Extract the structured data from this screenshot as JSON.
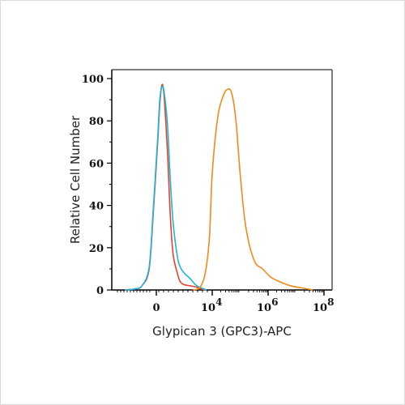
{
  "chart_data": {
    "type": "line",
    "title": "",
    "xlabel": "Glypican 3 (GPC3)-APC",
    "ylabel": "Relative Cell Number",
    "x_scale": "biexponential",
    "x_ticks": [
      {
        "label": "0",
        "base": "0",
        "exp": ""
      },
      {
        "label": "10^4",
        "base": "10",
        "exp": "4"
      },
      {
        "label": "10^6",
        "base": "10",
        "exp": "6"
      },
      {
        "label": "10^8",
        "base": "10",
        "exp": "8"
      }
    ],
    "ylim": [
      0,
      100
    ],
    "y_ticks": [
      "0",
      "20",
      "40",
      "60",
      "80",
      "100"
    ],
    "grid": false,
    "legend": "none",
    "series": [
      {
        "color": "#e8412a",
        "x": [
          -2.2,
          -1.5,
          -1.0,
          -0.5,
          -0.2,
          0.1,
          0.25,
          0.4,
          0.55,
          0.8,
          1.0,
          1.2,
          1.5,
          1.7,
          2.0,
          2.4,
          2.8,
          3.2,
          3.5
        ],
        "y": [
          0,
          0.5,
          2,
          10,
          38,
          70,
          88,
          97,
          92,
          65,
          35,
          17,
          8,
          4,
          2.5,
          2,
          1.5,
          0.5,
          0
        ]
      },
      {
        "color": "#1fb5d8",
        "x": [
          -2.2,
          -1.5,
          -1.0,
          -0.5,
          -0.2,
          0.1,
          0.25,
          0.4,
          0.55,
          0.8,
          1.0,
          1.2,
          1.5,
          1.7,
          2.0,
          2.4,
          2.8,
          3.2,
          3.6
        ],
        "y": [
          0,
          0.5,
          2,
          11,
          40,
          72,
          90,
          96,
          94,
          78,
          52,
          32,
          16,
          11,
          8,
          5.5,
          2.5,
          1,
          0
        ]
      },
      {
        "color": "#f08a1c",
        "x": [
          2.6,
          3.1,
          3.5,
          3.8,
          4.0,
          4.2,
          4.4,
          4.55,
          4.7,
          4.85,
          5.0,
          5.2,
          5.5,
          5.8,
          6.1,
          6.4,
          6.8,
          7.2,
          7.6
        ],
        "y": [
          0,
          1,
          8,
          25,
          55,
          82,
          92,
          95,
          93,
          80,
          55,
          30,
          14,
          10,
          6,
          4,
          2,
          1,
          0
        ]
      }
    ]
  }
}
